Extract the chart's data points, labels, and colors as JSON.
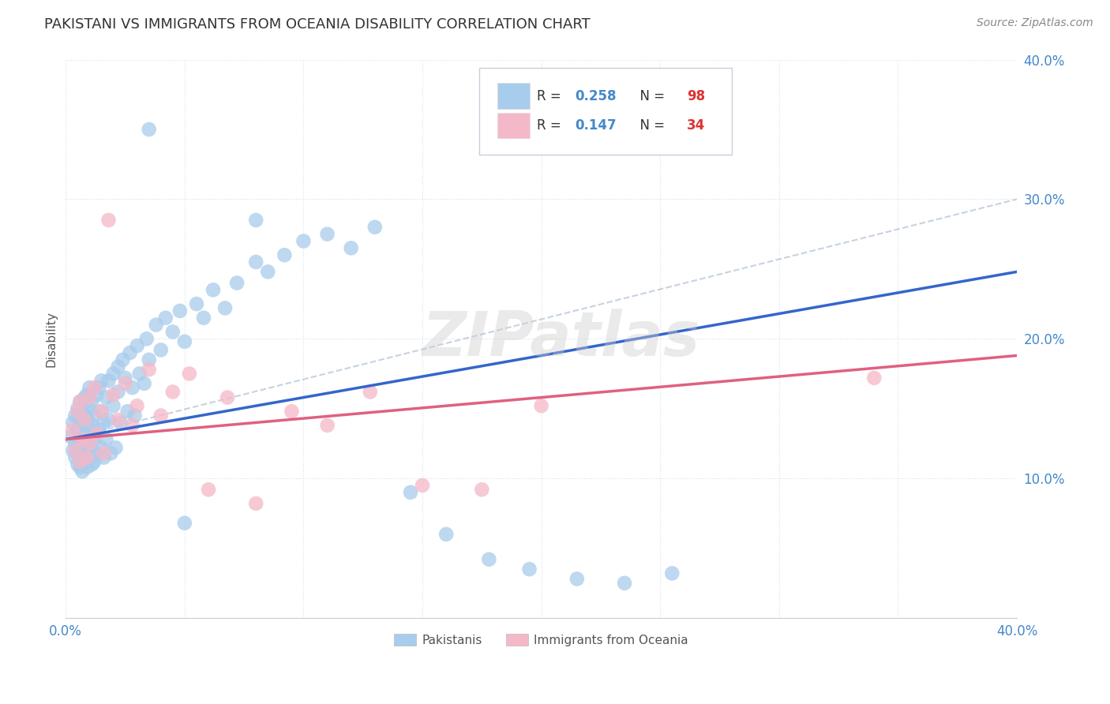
{
  "title": "PAKISTANI VS IMMIGRANTS FROM OCEANIA DISABILITY CORRELATION CHART",
  "source": "Source: ZipAtlas.com",
  "ylabel": "Disability",
  "xlim": [
    0.0,
    0.4
  ],
  "ylim": [
    0.0,
    0.4
  ],
  "watermark": "ZIPatlas",
  "legend_R1": "0.258",
  "legend_N1": "98",
  "legend_R2": "0.147",
  "legend_N2": "34",
  "pakistani_color": "#A8CCEC",
  "oceania_color": "#F5B8C8",
  "pakistani_line_color": "#3366CC",
  "oceania_line_color": "#E06080",
  "background_color": "#FFFFFF",
  "grid_color": "#D8DEE8",
  "tick_label_color": "#4488CC",
  "title_color": "#333333",
  "source_color": "#888888",
  "ylabel_color": "#555555",
  "legend_text_color": "#333333",
  "legend_border_color": "#CCCCDD",
  "bottom_legend_text_color": "#555555",
  "pak_line_start_x": 0.0,
  "pak_line_start_y": 0.128,
  "pak_line_end_x": 0.4,
  "pak_line_end_y": 0.248,
  "oce_line_start_x": 0.0,
  "oce_line_start_y": 0.128,
  "oce_line_end_x": 0.4,
  "oce_line_end_y": 0.188,
  "dashed_line_start_x": 0.0,
  "dashed_line_start_y": 0.128,
  "dashed_line_end_x": 0.4,
  "dashed_line_end_y": 0.3
}
